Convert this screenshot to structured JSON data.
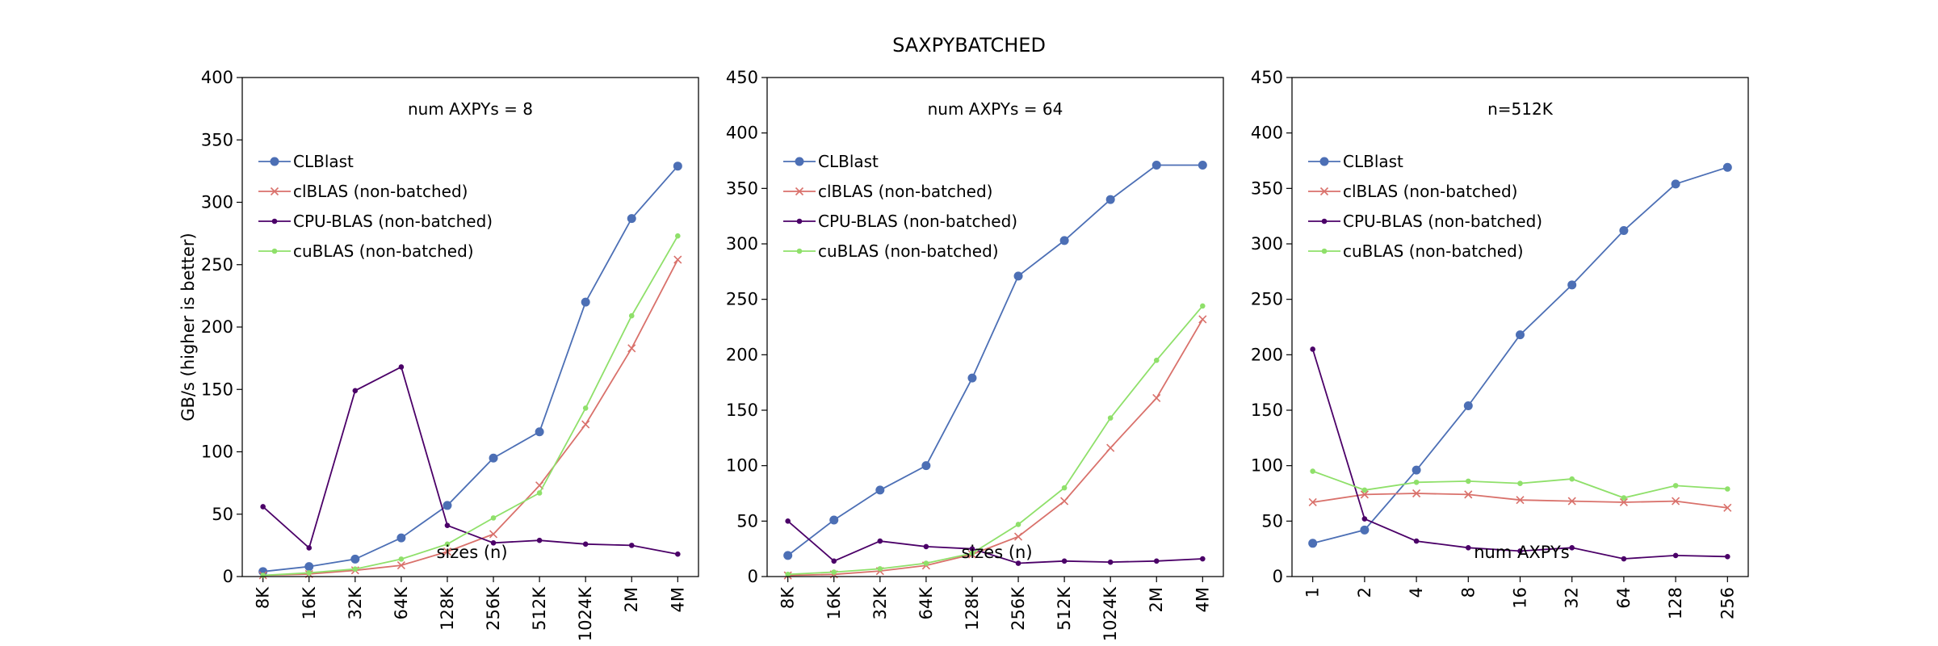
{
  "figure": {
    "suptitle": "SAXPYBATCHED"
  },
  "colors": {
    "CLBlast": "#4c6fb5",
    "clBLAS": "#d9716b",
    "CPU-BLAS": "#4b0068",
    "cuBLAS": "#8fe06a"
  },
  "chart_data": [
    {
      "type": "line",
      "title": "num AXPYs = 8",
      "xlabel": "sizes (n)",
      "ylabel": "GB/s (higher is better)",
      "categories": [
        "8K",
        "16K",
        "32K",
        "64K",
        "128K",
        "256K",
        "512K",
        "1024K",
        "2M",
        "4M"
      ],
      "ylim": [
        0,
        400
      ],
      "yticks": [
        0,
        50,
        100,
        150,
        200,
        250,
        300,
        350,
        400
      ],
      "legend": "upper-left",
      "series": [
        {
          "name": "CLBlast",
          "marker": "circle",
          "color_key": "CLBlast",
          "values": [
            4,
            8,
            14,
            31,
            57,
            95,
            116,
            220,
            287,
            329
          ]
        },
        {
          "name": "clBLAS (non-batched)",
          "marker": "x",
          "color_key": "clBLAS",
          "values": [
            1,
            2,
            5,
            9,
            20,
            34,
            73,
            122,
            183,
            254
          ]
        },
        {
          "name": "CPU-BLAS (non-batched)",
          "marker": "dot",
          "color_key": "CPU-BLAS",
          "values": [
            56,
            23,
            149,
            168,
            41,
            27,
            29,
            26,
            25,
            18
          ]
        },
        {
          "name": "cuBLAS (non-batched)",
          "marker": "dot",
          "color_key": "cuBLAS",
          "values": [
            1,
            3,
            6,
            14,
            26,
            47,
            67,
            135,
            209,
            273
          ]
        }
      ]
    },
    {
      "type": "line",
      "title": "num AXPYs = 64",
      "xlabel": "sizes (n)",
      "ylabel": "",
      "categories": [
        "8K",
        "16K",
        "32K",
        "64K",
        "128K",
        "256K",
        "512K",
        "1024K",
        "2M",
        "4M"
      ],
      "ylim": [
        0,
        450
      ],
      "yticks": [
        0,
        50,
        100,
        150,
        200,
        250,
        300,
        350,
        400,
        450
      ],
      "legend": "upper-left",
      "series": [
        {
          "name": "CLBlast",
          "marker": "circle",
          "color_key": "CLBlast",
          "values": [
            19,
            51,
            78,
            100,
            179,
            271,
            303,
            340,
            371,
            371
          ]
        },
        {
          "name": "clBLAS (non-batched)",
          "marker": "x",
          "color_key": "clBLAS",
          "values": [
            1,
            2,
            5,
            10,
            20,
            36,
            68,
            116,
            161,
            232
          ]
        },
        {
          "name": "CPU-BLAS (non-batched)",
          "marker": "dot",
          "color_key": "CPU-BLAS",
          "values": [
            50,
            14,
            32,
            27,
            25,
            12,
            14,
            13,
            14,
            16
          ]
        },
        {
          "name": "cuBLAS (non-batched)",
          "marker": "dot",
          "color_key": "cuBLAS",
          "values": [
            2,
            4,
            7,
            12,
            21,
            47,
            80,
            143,
            195,
            244
          ]
        }
      ]
    },
    {
      "type": "line",
      "title": "n=512K",
      "xlabel": "num AXPYs",
      "ylabel": "",
      "categories": [
        "1",
        "2",
        "4",
        "8",
        "16",
        "32",
        "64",
        "128",
        "256"
      ],
      "ylim": [
        0,
        450
      ],
      "yticks": [
        0,
        50,
        100,
        150,
        200,
        250,
        300,
        350,
        400,
        450
      ],
      "legend": "upper-left",
      "series": [
        {
          "name": "CLBlast",
          "marker": "circle",
          "color_key": "CLBlast",
          "values": [
            30,
            42,
            96,
            154,
            218,
            263,
            312,
            354,
            369
          ]
        },
        {
          "name": "clBLAS (non-batched)",
          "marker": "x",
          "color_key": "clBLAS",
          "values": [
            67,
            74,
            75,
            74,
            69,
            68,
            67,
            68,
            62
          ]
        },
        {
          "name": "CPU-BLAS (non-batched)",
          "marker": "dot",
          "color_key": "CPU-BLAS",
          "values": [
            205,
            52,
            32,
            26,
            23,
            26,
            16,
            19,
            18
          ]
        },
        {
          "name": "cuBLAS (non-batched)",
          "marker": "dot",
          "color_key": "cuBLAS",
          "values": [
            95,
            78,
            85,
            86,
            84,
            88,
            71,
            82,
            79
          ]
        }
      ]
    }
  ]
}
